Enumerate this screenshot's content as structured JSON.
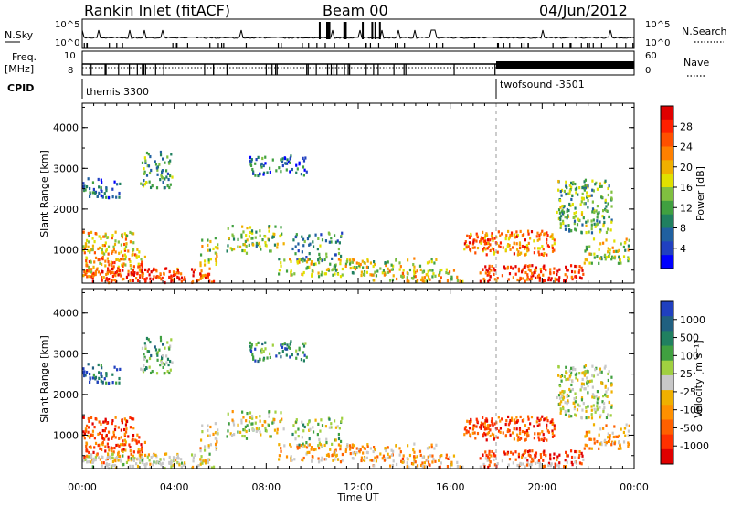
{
  "header": {
    "station": "Rankin Inlet (fitACF)",
    "beam": "Beam 00",
    "date": "04/Jun/2012"
  },
  "sky_panel": {
    "left_label": "N.Sky",
    "right_label": "N.Search",
    "left_ticks": [
      "10^5",
      "10^0"
    ],
    "right_ticks": [
      "10^5",
      "10^0"
    ]
  },
  "freq_panel": {
    "left_label_1": "Freq.",
    "left_label_2": "[MHz]",
    "right_label": "Nave",
    "left_ticks": [
      "10",
      "8"
    ],
    "right_ticks": [
      "60",
      "0"
    ]
  },
  "cpid": {
    "label": "CPID",
    "programs": [
      {
        "name": "themis 3300",
        "start_hour": 0
      },
      {
        "name": "twofsound -3501",
        "start_hour": 18
      }
    ]
  },
  "chart_data": [
    {
      "type": "heatmap",
      "name": "power",
      "x_range_hours": [
        0,
        24
      ],
      "x_ticks": [
        "00:00",
        "04:00",
        "08:00",
        "12:00",
        "16:00",
        "20:00",
        "00:00"
      ],
      "xlabel": "Time UT",
      "ylabel": "Slant Range [km]",
      "y_ticks": [
        "1000",
        "2000",
        "3000",
        "4000"
      ],
      "ylim": [
        180,
        4600
      ],
      "colorbar": {
        "label": "Power [dB]",
        "ticks": [
          "4",
          "8",
          "12",
          "16",
          "20",
          "24",
          "28"
        ],
        "colors": [
          "#0000ff",
          "#2040c0",
          "#2060a0",
          "#208060",
          "#40a040",
          "#80c040",
          "#e0e000",
          "#f0b000",
          "#ff8000",
          "#ff5000",
          "#ff2000",
          "#e00000"
        ]
      }
    },
    {
      "type": "heatmap",
      "name": "velocity",
      "x_range_hours": [
        0,
        24
      ],
      "x_ticks": [
        "00:00",
        "04:00",
        "08:00",
        "12:00",
        "16:00",
        "20:00",
        "00:00"
      ],
      "xlabel": "Time UT",
      "ylabel": "Slant Range [km]",
      "y_ticks": [
        "1000",
        "2000",
        "3000",
        "4000"
      ],
      "ylim": [
        180,
        4600
      ],
      "colorbar": {
        "label": "Velocity [m s⁻¹]",
        "ticks": [
          "1000",
          "500",
          "100",
          "25",
          "-25",
          "-100",
          "-500",
          "-1000"
        ],
        "colors": [
          "#2040c0",
          "#206080",
          "#208060",
          "#40a040",
          "#a0d040",
          "#c8c8c8",
          "#f0b000",
          "#ff9000",
          "#ff6000",
          "#ff3000",
          "#e00000"
        ]
      }
    }
  ],
  "colors": {
    "axis": "#000000",
    "ground": "#c8c8c8"
  }
}
